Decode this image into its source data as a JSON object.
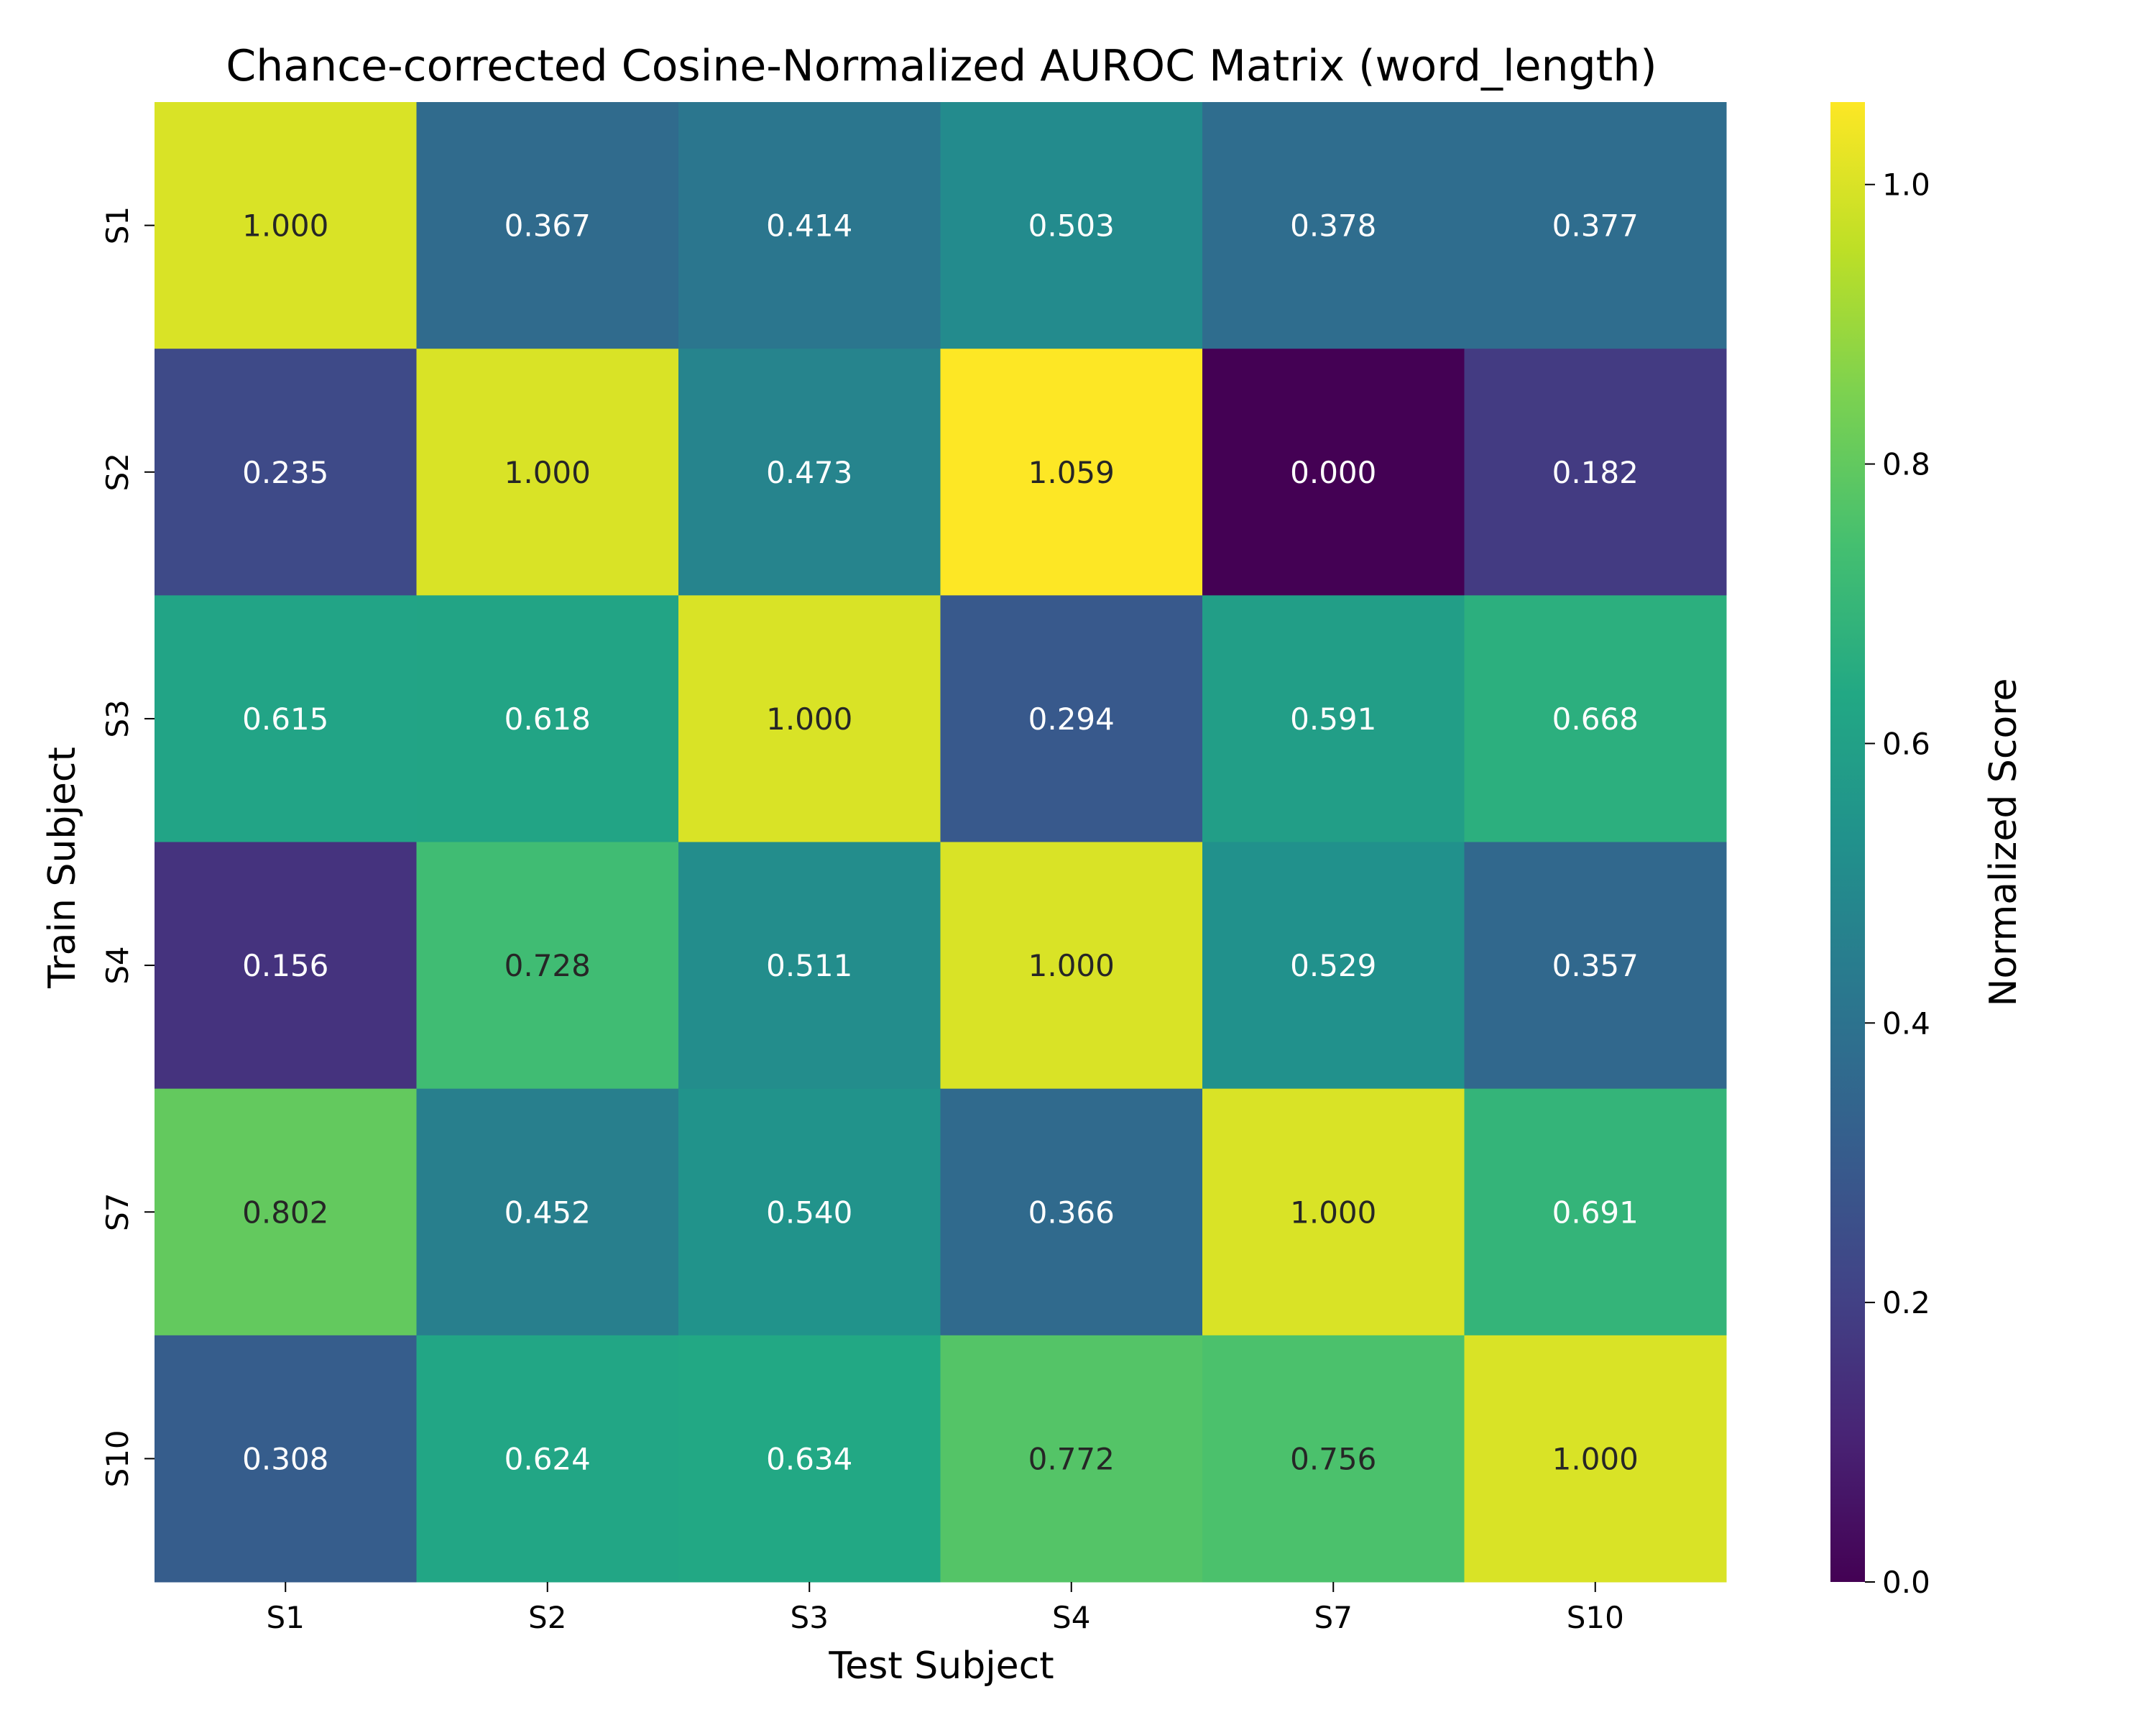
{
  "chart_data": {
    "type": "heatmap",
    "title": "Chance-corrected Cosine-Normalized AUROC Matrix (word_length)",
    "xlabel": "Test Subject",
    "ylabel": "Train Subject",
    "x_categories": [
      "S1",
      "S2",
      "S3",
      "S4",
      "S7",
      "S10"
    ],
    "y_categories": [
      "S1",
      "S2",
      "S3",
      "S4",
      "S7",
      "S10"
    ],
    "values": [
      [
        1.0,
        0.367,
        0.414,
        0.503,
        0.378,
        0.377
      ],
      [
        0.235,
        1.0,
        0.473,
        1.059,
        0.0,
        0.182
      ],
      [
        0.615,
        0.618,
        1.0,
        0.294,
        0.591,
        0.668
      ],
      [
        0.156,
        0.728,
        0.511,
        1.0,
        0.529,
        0.357
      ],
      [
        0.802,
        0.452,
        0.54,
        0.366,
        1.0,
        0.691
      ],
      [
        0.308,
        0.624,
        0.634,
        0.772,
        0.756,
        1.0
      ]
    ],
    "value_format": "0.000",
    "colormap": "viridis",
    "color_range": [
      0.0,
      1.059
    ],
    "colorbar": {
      "label": "Normalized Score",
      "ticks": [
        0.0,
        0.2,
        0.4,
        0.6,
        0.8,
        1.0
      ],
      "tick_labels": [
        "0.0",
        "0.2",
        "0.4",
        "0.6",
        "0.8",
        "1.0"
      ]
    },
    "grid": false,
    "colorbar_placement": "right"
  }
}
